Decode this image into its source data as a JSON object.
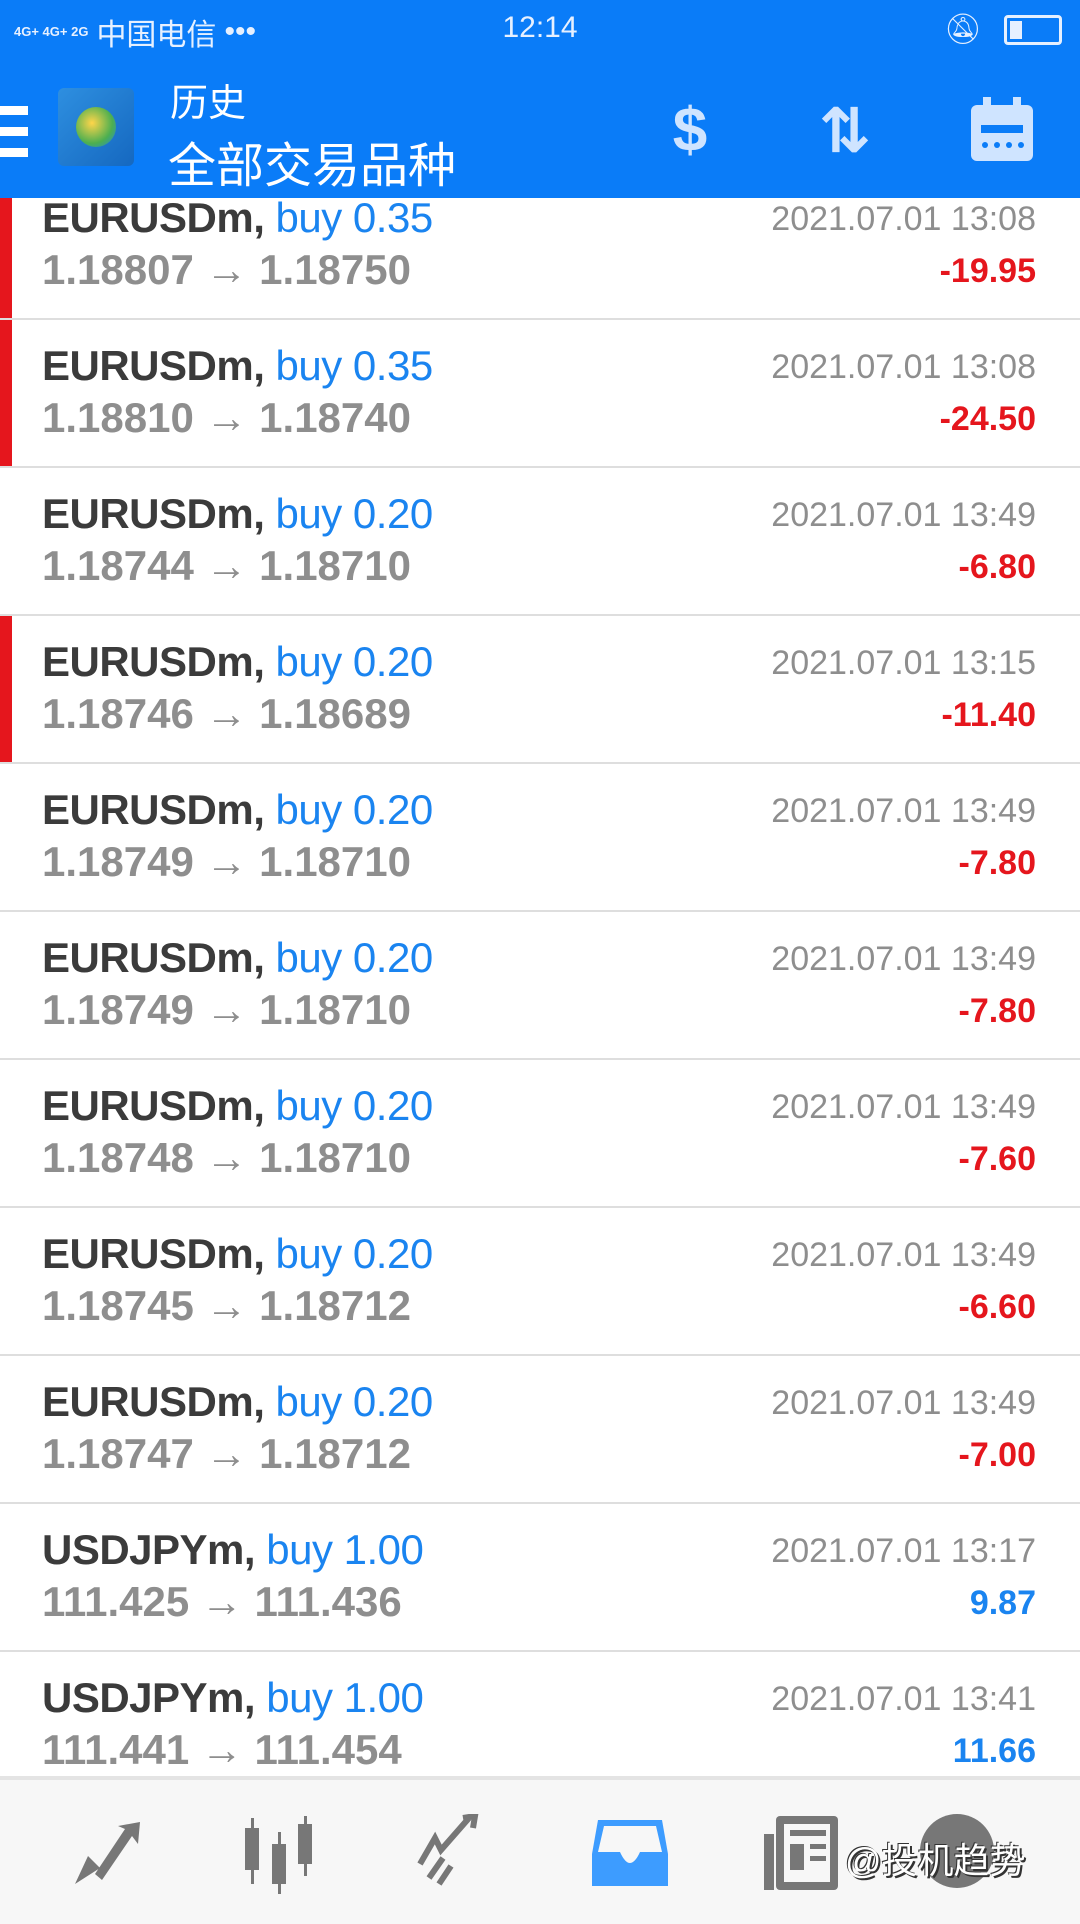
{
  "status_bar": {
    "signal": "4G+ 4G+ 2G",
    "carrier": "中国电信",
    "more": "•••",
    "time": "12:14",
    "icons": [
      "bell-off-icon",
      "battery-icon"
    ],
    "battery_level": 0.25
  },
  "header": {
    "subtitle": "历史",
    "title": "全部交易品种",
    "icons": [
      "menu-icon",
      "mt4-logo",
      "currency-exchange-icon",
      "sort-icon",
      "calendar-icon"
    ]
  },
  "colors": {
    "accent": "#0a7cf8",
    "loss": "#e5161d",
    "profit": "#1a84f0"
  },
  "trades": [
    {
      "symbol": "EURUSDm,",
      "side": "buy 0.35",
      "open": "1.18807",
      "close": "1.18750",
      "date": "2021.07.01 13:08",
      "profit": "-19.95",
      "flag": true
    },
    {
      "symbol": "EURUSDm,",
      "side": "buy 0.35",
      "open": "1.18810",
      "close": "1.18740",
      "date": "2021.07.01 13:08",
      "profit": "-24.50",
      "flag": true
    },
    {
      "symbol": "EURUSDm,",
      "side": "buy 0.20",
      "open": "1.18744",
      "close": "1.18710",
      "date": "2021.07.01 13:49",
      "profit": "-6.80",
      "flag": false
    },
    {
      "symbol": "EURUSDm,",
      "side": "buy 0.20",
      "open": "1.18746",
      "close": "1.18689",
      "date": "2021.07.01 13:15",
      "profit": "-11.40",
      "flag": true
    },
    {
      "symbol": "EURUSDm,",
      "side": "buy 0.20",
      "open": "1.18749",
      "close": "1.18710",
      "date": "2021.07.01 13:49",
      "profit": "-7.80",
      "flag": false
    },
    {
      "symbol": "EURUSDm,",
      "side": "buy 0.20",
      "open": "1.18749",
      "close": "1.18710",
      "date": "2021.07.01 13:49",
      "profit": "-7.80",
      "flag": false
    },
    {
      "symbol": "EURUSDm,",
      "side": "buy 0.20",
      "open": "1.18748",
      "close": "1.18710",
      "date": "2021.07.01 13:49",
      "profit": "-7.60",
      "flag": false
    },
    {
      "symbol": "EURUSDm,",
      "side": "buy 0.20",
      "open": "1.18745",
      "close": "1.18712",
      "date": "2021.07.01 13:49",
      "profit": "-6.60",
      "flag": false
    },
    {
      "symbol": "EURUSDm,",
      "side": "buy 0.20",
      "open": "1.18747",
      "close": "1.18712",
      "date": "2021.07.01 13:49",
      "profit": "-7.00",
      "flag": false
    },
    {
      "symbol": "USDJPYm,",
      "side": "buy 1.00",
      "open": "111.425",
      "close": "111.436",
      "date": "2021.07.01 13:17",
      "profit": "9.87",
      "flag": false
    },
    {
      "symbol": "USDJPYm,",
      "side": "buy 1.00",
      "open": "111.441",
      "close": "111.454",
      "date": "2021.07.01 13:41",
      "profit": "11.66",
      "flag": false
    }
  ],
  "arrow": "→",
  "bottom_nav": {
    "items": [
      "quotes-icon",
      "chart-icon",
      "trade-icon",
      "history-icon",
      "news-icon",
      "chat-icon"
    ],
    "active": "history-icon"
  },
  "watermark": "@投机趋势"
}
